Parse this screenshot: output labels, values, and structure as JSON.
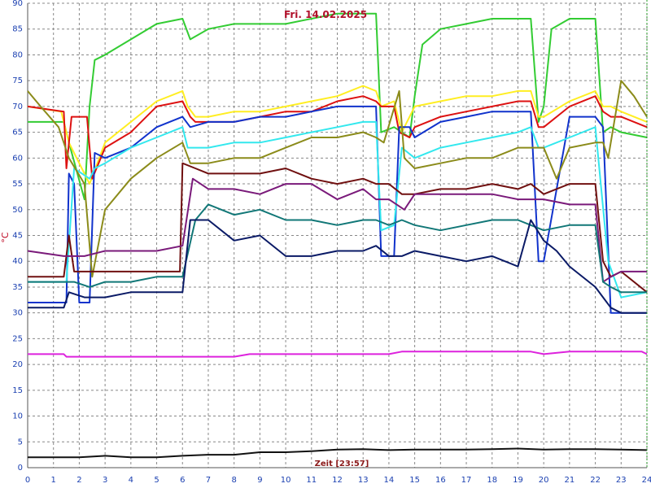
{
  "chart_data": {
    "type": "line",
    "title": "Fri. 14.02.2025",
    "xlabel": "Zeit [23:57]",
    "ylabel": "°C",
    "xlim": [
      0,
      24
    ],
    "ylim": [
      0,
      90
    ],
    "x_ticks": [
      0,
      1,
      2,
      3,
      4,
      5,
      6,
      7,
      8,
      9,
      10,
      11,
      12,
      13,
      14,
      15,
      16,
      17,
      18,
      19,
      20,
      21,
      22,
      23,
      24
    ],
    "y_ticks": [
      0,
      5,
      10,
      15,
      20,
      25,
      30,
      35,
      40,
      45,
      50,
      55,
      60,
      65,
      70,
      75,
      80,
      85,
      90
    ],
    "grid": true,
    "series": [
      {
        "color": "#33cc33",
        "x": [
          0,
          1.4,
          1.6,
          2.2,
          2.4,
          2.6,
          3,
          4,
          5,
          6,
          6.3,
          7,
          8,
          9,
          10,
          11,
          12,
          13,
          13.5,
          13.7,
          14.2,
          14.8,
          15,
          15.3,
          16,
          17,
          18,
          19,
          19.5,
          19.8,
          20,
          20.3,
          21,
          22,
          22.3,
          22.6,
          23,
          24
        ],
        "y": [
          67,
          67,
          63,
          52,
          70,
          79,
          80,
          83,
          86,
          87,
          83,
          85,
          86,
          86,
          86,
          87,
          88,
          88,
          88,
          65,
          66,
          64,
          72,
          82,
          85,
          86,
          87,
          87,
          87,
          67,
          70,
          85,
          87,
          87,
          65,
          66,
          65,
          64
        ]
      },
      {
        "color": "#ffee22",
        "x": [
          0,
          1.3,
          1.6,
          2.4,
          3,
          4,
          5,
          6,
          6.2,
          6.5,
          7,
          8,
          9,
          10,
          11,
          12,
          13,
          13.5,
          13.7,
          14.2,
          14.5,
          15,
          16,
          17,
          18,
          19,
          19.5,
          19.8,
          20,
          21,
          22,
          22.3,
          22.6,
          23,
          24
        ],
        "y": [
          70,
          69,
          63,
          55,
          63,
          67,
          71,
          73,
          70,
          68,
          68,
          69,
          69,
          70,
          71,
          72,
          74,
          73,
          70,
          71,
          65,
          70,
          71,
          72,
          72,
          73,
          73,
          68,
          68,
          71,
          73,
          70,
          70,
          69,
          67
        ]
      },
      {
        "color": "#dd1111",
        "x": [
          0,
          1.4,
          1.5,
          1.7,
          2.3,
          2.5,
          3,
          4,
          5,
          6,
          6.3,
          6.5,
          7,
          8,
          9,
          10,
          11,
          12,
          13,
          13.5,
          13.7,
          14.2,
          14.4,
          14.8,
          15,
          16,
          17,
          18,
          19,
          19.5,
          19.8,
          20,
          21,
          22,
          22.3,
          22.6,
          23,
          24
        ],
        "y": [
          70,
          69,
          58,
          68,
          68,
          56,
          62,
          65,
          70,
          71,
          68,
          67,
          67,
          67,
          68,
          69,
          69,
          71,
          72,
          71,
          70,
          70,
          65,
          64,
          66,
          68,
          69,
          70,
          71,
          71,
          66,
          66,
          70,
          72,
          69,
          68,
          68,
          66
        ]
      },
      {
        "color": "#1133cc",
        "x": [
          0,
          1.5,
          1.6,
          1.8,
          2,
          2.4,
          2.6,
          3,
          4,
          5,
          6,
          6.3,
          7,
          8,
          9,
          10,
          11,
          12,
          13,
          13.5,
          13.7,
          14.2,
          14.4,
          14.8,
          15,
          16,
          17,
          18,
          19,
          19.5,
          19.8,
          20,
          21,
          22,
          22.3,
          22.6,
          23,
          24
        ],
        "y": [
          32,
          32,
          57,
          55,
          32,
          32,
          61,
          60,
          62,
          66,
          68,
          66,
          67,
          67,
          68,
          68,
          69,
          70,
          70,
          70,
          41,
          41,
          66,
          66,
          64,
          67,
          68,
          69,
          69,
          69,
          40,
          40,
          68,
          68,
          66,
          30,
          30,
          30
        ]
      },
      {
        "color": "#33e8ee",
        "x": [
          0,
          1.5,
          1.8,
          2.4,
          2.6,
          3,
          4,
          5,
          6,
          6.2,
          7,
          8,
          9,
          10,
          11,
          12,
          13,
          13.5,
          13.7,
          14.2,
          14.5,
          15,
          16,
          17,
          18,
          19,
          19.5,
          19.8,
          20,
          21,
          22,
          22.5,
          23,
          24
        ],
        "y": [
          36,
          36,
          58,
          56,
          58,
          59,
          62,
          64,
          66,
          62,
          62,
          63,
          63,
          64,
          65,
          66,
          67,
          67,
          46,
          47,
          62,
          60,
          62,
          63,
          64,
          65,
          66,
          62,
          62,
          64,
          66,
          40,
          33,
          34
        ]
      },
      {
        "color": "#8b8b1a",
        "x": [
          0,
          0.5,
          1.2,
          1.6,
          2.2,
          2.5,
          3,
          4,
          5,
          6,
          6.3,
          7,
          8,
          9,
          10,
          11,
          12,
          13,
          13.5,
          13.8,
          14.4,
          14.6,
          15,
          16,
          17,
          18,
          19,
          19.8,
          20,
          20.5,
          21,
          22,
          22.3,
          22.5,
          23,
          23.5,
          24
        ],
        "y": [
          73,
          70,
          66,
          60,
          55,
          37,
          50,
          56,
          60,
          63,
          59,
          59,
          60,
          60,
          62,
          64,
          64,
          65,
          64,
          63,
          73,
          60,
          58,
          59,
          60,
          60,
          62,
          62,
          62,
          56,
          62,
          63,
          63,
          60,
          75,
          72,
          68
        ]
      },
      {
        "color": "#701010",
        "x": [
          0,
          1.4,
          1.6,
          1.8,
          2.2,
          3,
          4,
          5,
          5.9,
          6,
          6.5,
          7,
          8,
          9,
          10,
          11,
          12,
          13,
          13.5,
          14,
          14.5,
          15,
          16,
          17,
          18,
          19,
          19.5,
          20,
          21,
          22,
          22.3,
          22.6,
          23,
          24
        ],
        "y": [
          37,
          37,
          45,
          38,
          38,
          38,
          38,
          38,
          38,
          59,
          58,
          57,
          57,
          57,
          58,
          56,
          55,
          56,
          55,
          55,
          53,
          53,
          54,
          54,
          55,
          54,
          55,
          53,
          55,
          55,
          40,
          37,
          38,
          34
        ]
      },
      {
        "color": "#7a1a7a",
        "x": [
          0,
          1.4,
          1.6,
          2.2,
          3,
          4,
          5,
          6,
          6.4,
          7,
          8,
          9,
          10,
          11,
          12,
          13,
          13.5,
          14,
          14.6,
          15,
          16,
          17,
          18,
          19,
          19.5,
          20,
          21,
          22,
          22.3,
          22.6,
          23,
          24
        ],
        "y": [
          42,
          41,
          41,
          41,
          42,
          42,
          42,
          43,
          56,
          54,
          54,
          53,
          55,
          55,
          52,
          54,
          52,
          52,
          50,
          53,
          53,
          53,
          53,
          52,
          52,
          52,
          51,
          51,
          36,
          37,
          38,
          38
        ]
      },
      {
        "color": "#117777",
        "x": [
          0,
          1.5,
          1.8,
          2.4,
          3,
          4,
          5,
          6,
          6.5,
          7,
          8,
          9,
          10,
          11,
          12,
          13,
          13.5,
          14,
          14.5,
          15,
          16,
          17,
          18,
          19,
          19.5,
          20,
          21,
          22,
          22.3,
          22.6,
          23,
          24
        ],
        "y": [
          36,
          36,
          36,
          35,
          36,
          36,
          37,
          37,
          48,
          51,
          49,
          50,
          48,
          48,
          47,
          48,
          48,
          47,
          48,
          47,
          46,
          47,
          48,
          48,
          47,
          46,
          47,
          47,
          36,
          35,
          34,
          34
        ]
      },
      {
        "color": "#0a1a66",
        "x": [
          0,
          1.4,
          1.6,
          2.2,
          3,
          4,
          5,
          6,
          6.3,
          7,
          8,
          9,
          10,
          11,
          12,
          13,
          13.5,
          14,
          14.5,
          15,
          16,
          17,
          18,
          19,
          19.5,
          20,
          20.5,
          21,
          22,
          22.3,
          22.6,
          23,
          24
        ],
        "y": [
          31,
          31,
          34,
          33,
          33,
          34,
          34,
          34,
          48,
          48,
          44,
          45,
          41,
          41,
          42,
          42,
          43,
          41,
          41,
          42,
          41,
          40,
          41,
          39,
          48,
          44,
          42,
          39,
          35,
          33,
          31,
          30,
          30
        ]
      },
      {
        "color": "#dd22dd",
        "x": [
          0,
          1.4,
          1.5,
          2,
          3,
          4,
          5,
          6,
          7,
          8,
          8.6,
          9,
          10,
          11,
          12,
          13,
          14,
          14.5,
          15,
          16,
          17,
          18,
          19,
          19.5,
          20,
          21,
          22,
          23,
          23.8,
          24
        ],
        "y": [
          22,
          22,
          21.5,
          21.5,
          21.5,
          21.5,
          21.5,
          21.5,
          21.5,
          21.5,
          22,
          22,
          22,
          22,
          22,
          22,
          22,
          22.5,
          22.5,
          22.5,
          22.5,
          22.5,
          22.5,
          22.5,
          22,
          22.5,
          22.5,
          22.5,
          22.5,
          22
        ]
      },
      {
        "color": "#111111",
        "x": [
          0,
          1,
          2,
          3,
          4,
          5,
          6,
          7,
          8,
          9,
          10,
          11,
          12,
          13,
          14,
          15,
          16,
          17,
          18,
          19,
          20,
          21,
          22,
          23,
          24
        ],
        "y": [
          2,
          2,
          2,
          2.3,
          2,
          2,
          2.3,
          2.5,
          2.5,
          3,
          3,
          3.2,
          3.5,
          3.6,
          3.4,
          3.5,
          3.5,
          3.5,
          3.6,
          3.7,
          3.5,
          3.6,
          3.6,
          3.5,
          3.4
        ]
      }
    ]
  }
}
